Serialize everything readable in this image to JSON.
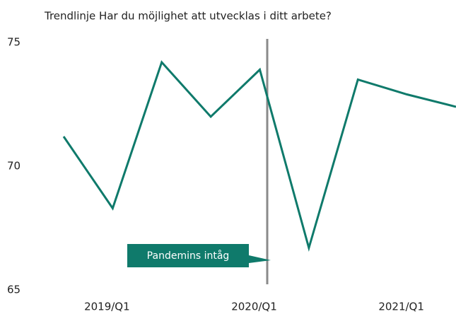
{
  "chart_data": {
    "type": "line",
    "title": "Trendlinje Har du möjlighet att utvecklas i ditt arbete?",
    "categories": [
      null,
      "2019/Q1",
      null,
      null,
      "2020/Q1",
      null,
      null,
      "2021/Q1",
      null
    ],
    "values": [
      71.2,
      68.3,
      74.2,
      72.0,
      73.9,
      66.7,
      73.5,
      72.9,
      72.4
    ],
    "color": "#0f7a6b",
    "ylim": [
      65,
      75
    ],
    "yticks": [
      65,
      70,
      75
    ],
    "annotation": "Pandemins intåg"
  }
}
